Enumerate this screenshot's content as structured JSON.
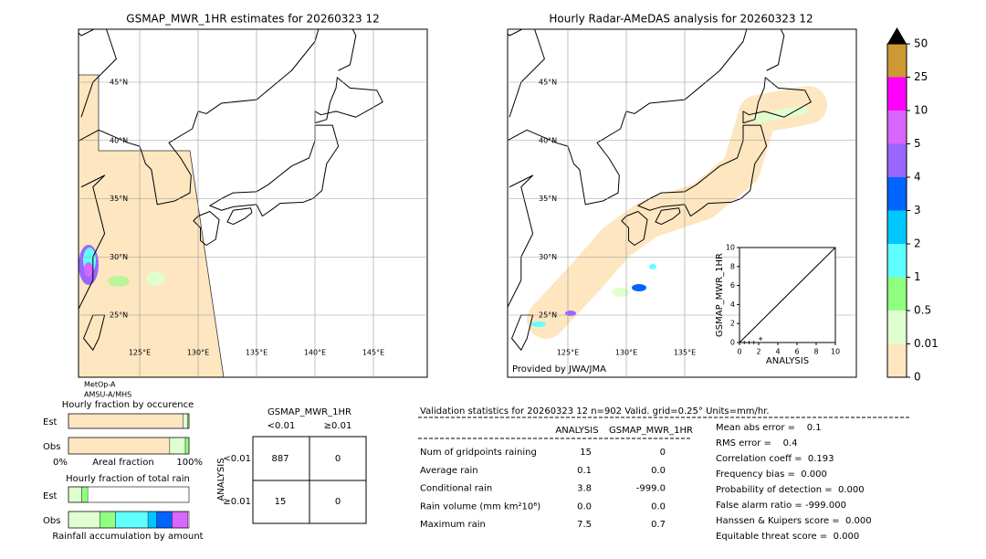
{
  "left_map": {
    "title": "GSMAP_MWR_1HR estimates for 20260323 12",
    "lat_labels": [
      "45°N",
      "40°N",
      "35°N",
      "30°N",
      "25°N"
    ],
    "lon_labels": [
      "125°E",
      "130°E",
      "135°E",
      "140°E",
      "145°E"
    ],
    "satellites": [
      "MetOp-A",
      "AMSU-A/MHS"
    ]
  },
  "right_map": {
    "title": "Hourly Radar-AMeDAS analysis for 20260323 12",
    "lat_labels": [
      "45°N",
      "40°N",
      "35°N",
      "30°N",
      "25°N"
    ],
    "lon_labels": [
      "125°E",
      "130°E",
      "135°E"
    ],
    "credit": "Provided by JWA/JMA"
  },
  "colorbar": {
    "ticks": [
      0,
      0.01,
      0.5,
      1,
      2,
      3,
      4,
      5,
      10,
      25,
      50
    ],
    "colors": [
      "#fde6c0",
      "#e0ffd0",
      "#90ff80",
      "#60ffff",
      "#00c8ff",
      "#0064ff",
      "#9966ff",
      "#d966ff",
      "#ff00ff",
      "#cc9933"
    ],
    "extend_color": "#000000"
  },
  "scatter": {
    "type": "scatter",
    "xlabel": "ANALYSIS",
    "ylabel": "GSMAP_MWR_1HR",
    "xlim": [
      0,
      10
    ],
    "ylim": [
      0,
      10
    ],
    "xticks": [
      0,
      2,
      4,
      6,
      8,
      10
    ],
    "yticks": [
      0,
      2,
      4,
      6,
      8,
      10
    ],
    "x": [
      0.5,
      1,
      1.5,
      2.2
    ],
    "y": [
      0,
      0,
      0,
      0.4
    ],
    "color": "#000000"
  },
  "fractions": {
    "occurrence_title": "Hourly fraction by occurence",
    "rows": [
      "Est",
      "Obs"
    ],
    "axis_labels": [
      "0%",
      "Areal fraction",
      "100%"
    ],
    "total_title": "Hourly fraction of total rain",
    "accum_label": "Rainfall accumulation by amount",
    "colors": [
      "#fde6c0",
      "#e0ffd0",
      "#90ff80",
      "#60ffff",
      "#00c8ff",
      "#0064ff",
      "#d966ff"
    ],
    "occurrence_est": [
      95,
      4,
      1
    ],
    "occurrence_obs": [
      84,
      13,
      3
    ],
    "total_est": [
      0,
      11,
      5
    ],
    "total_obs": [
      0,
      26,
      13,
      27,
      7,
      13,
      13
    ]
  },
  "contingency": {
    "title": "GSMAP_MWR_1HR",
    "cols": [
      "<0.01",
      "≥0.01"
    ],
    "row_axis": "ANALYSIS",
    "rows": [
      "<0.01",
      "≥0.01"
    ],
    "cells": [
      [
        "887",
        "0"
      ],
      [
        "15",
        "0"
      ]
    ]
  },
  "validation": {
    "header": "Validation statistics for 20260323 12  n=902 Valid. grid=0.25° Units=mm/hr.",
    "columns": [
      "ANALYSIS",
      "GSMAP_MWR_1HR"
    ],
    "rows": [
      [
        "Num of gridpoints raining",
        "15",
        "0"
      ],
      [
        "Average rain",
        "0.1",
        "0.0"
      ],
      [
        "Conditional rain",
        "3.8",
        "-999.0"
      ],
      [
        "Rain volume (mm km²10⁶)",
        "0.0",
        "0.0"
      ],
      [
        "Maximum rain",
        "7.5",
        "0.7"
      ]
    ],
    "scores": [
      "Mean abs error =    0.1",
      "RMS error =    0.4",
      "Correlation coeff =  0.193",
      "Frequency bias =  0.000",
      "Probability of detection =  0.000",
      "False alarm ratio = -999.000",
      "Hanssen & Kuipers score =  0.000",
      "Equitable threat score =  0.000"
    ]
  }
}
